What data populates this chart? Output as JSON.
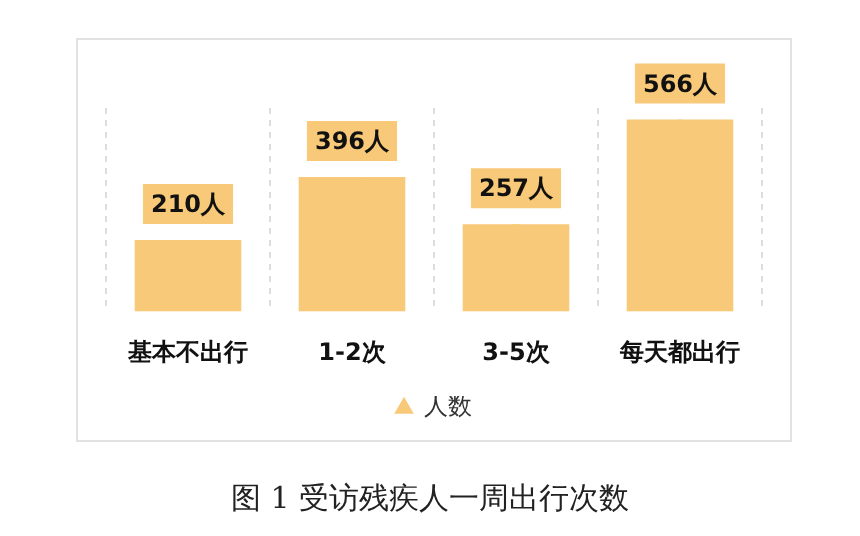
{
  "chart_data": {
    "type": "bar",
    "categories": [
      "基本不出行",
      "1-2次",
      "3-5次",
      "每天都出行"
    ],
    "series": [
      {
        "name": "人数",
        "color": "#f8c978",
        "values": [
          210,
          396,
          257,
          566
        ],
        "value_labels": [
          "210人",
          "396人",
          "257人",
          "566人"
        ]
      }
    ],
    "grid": "x",
    "legend": "bottom",
    "marker": "triangle",
    "tick_labels": "x",
    "annotations": [
      "图 1 受访残疾人一周出行次数"
    ]
  }
}
